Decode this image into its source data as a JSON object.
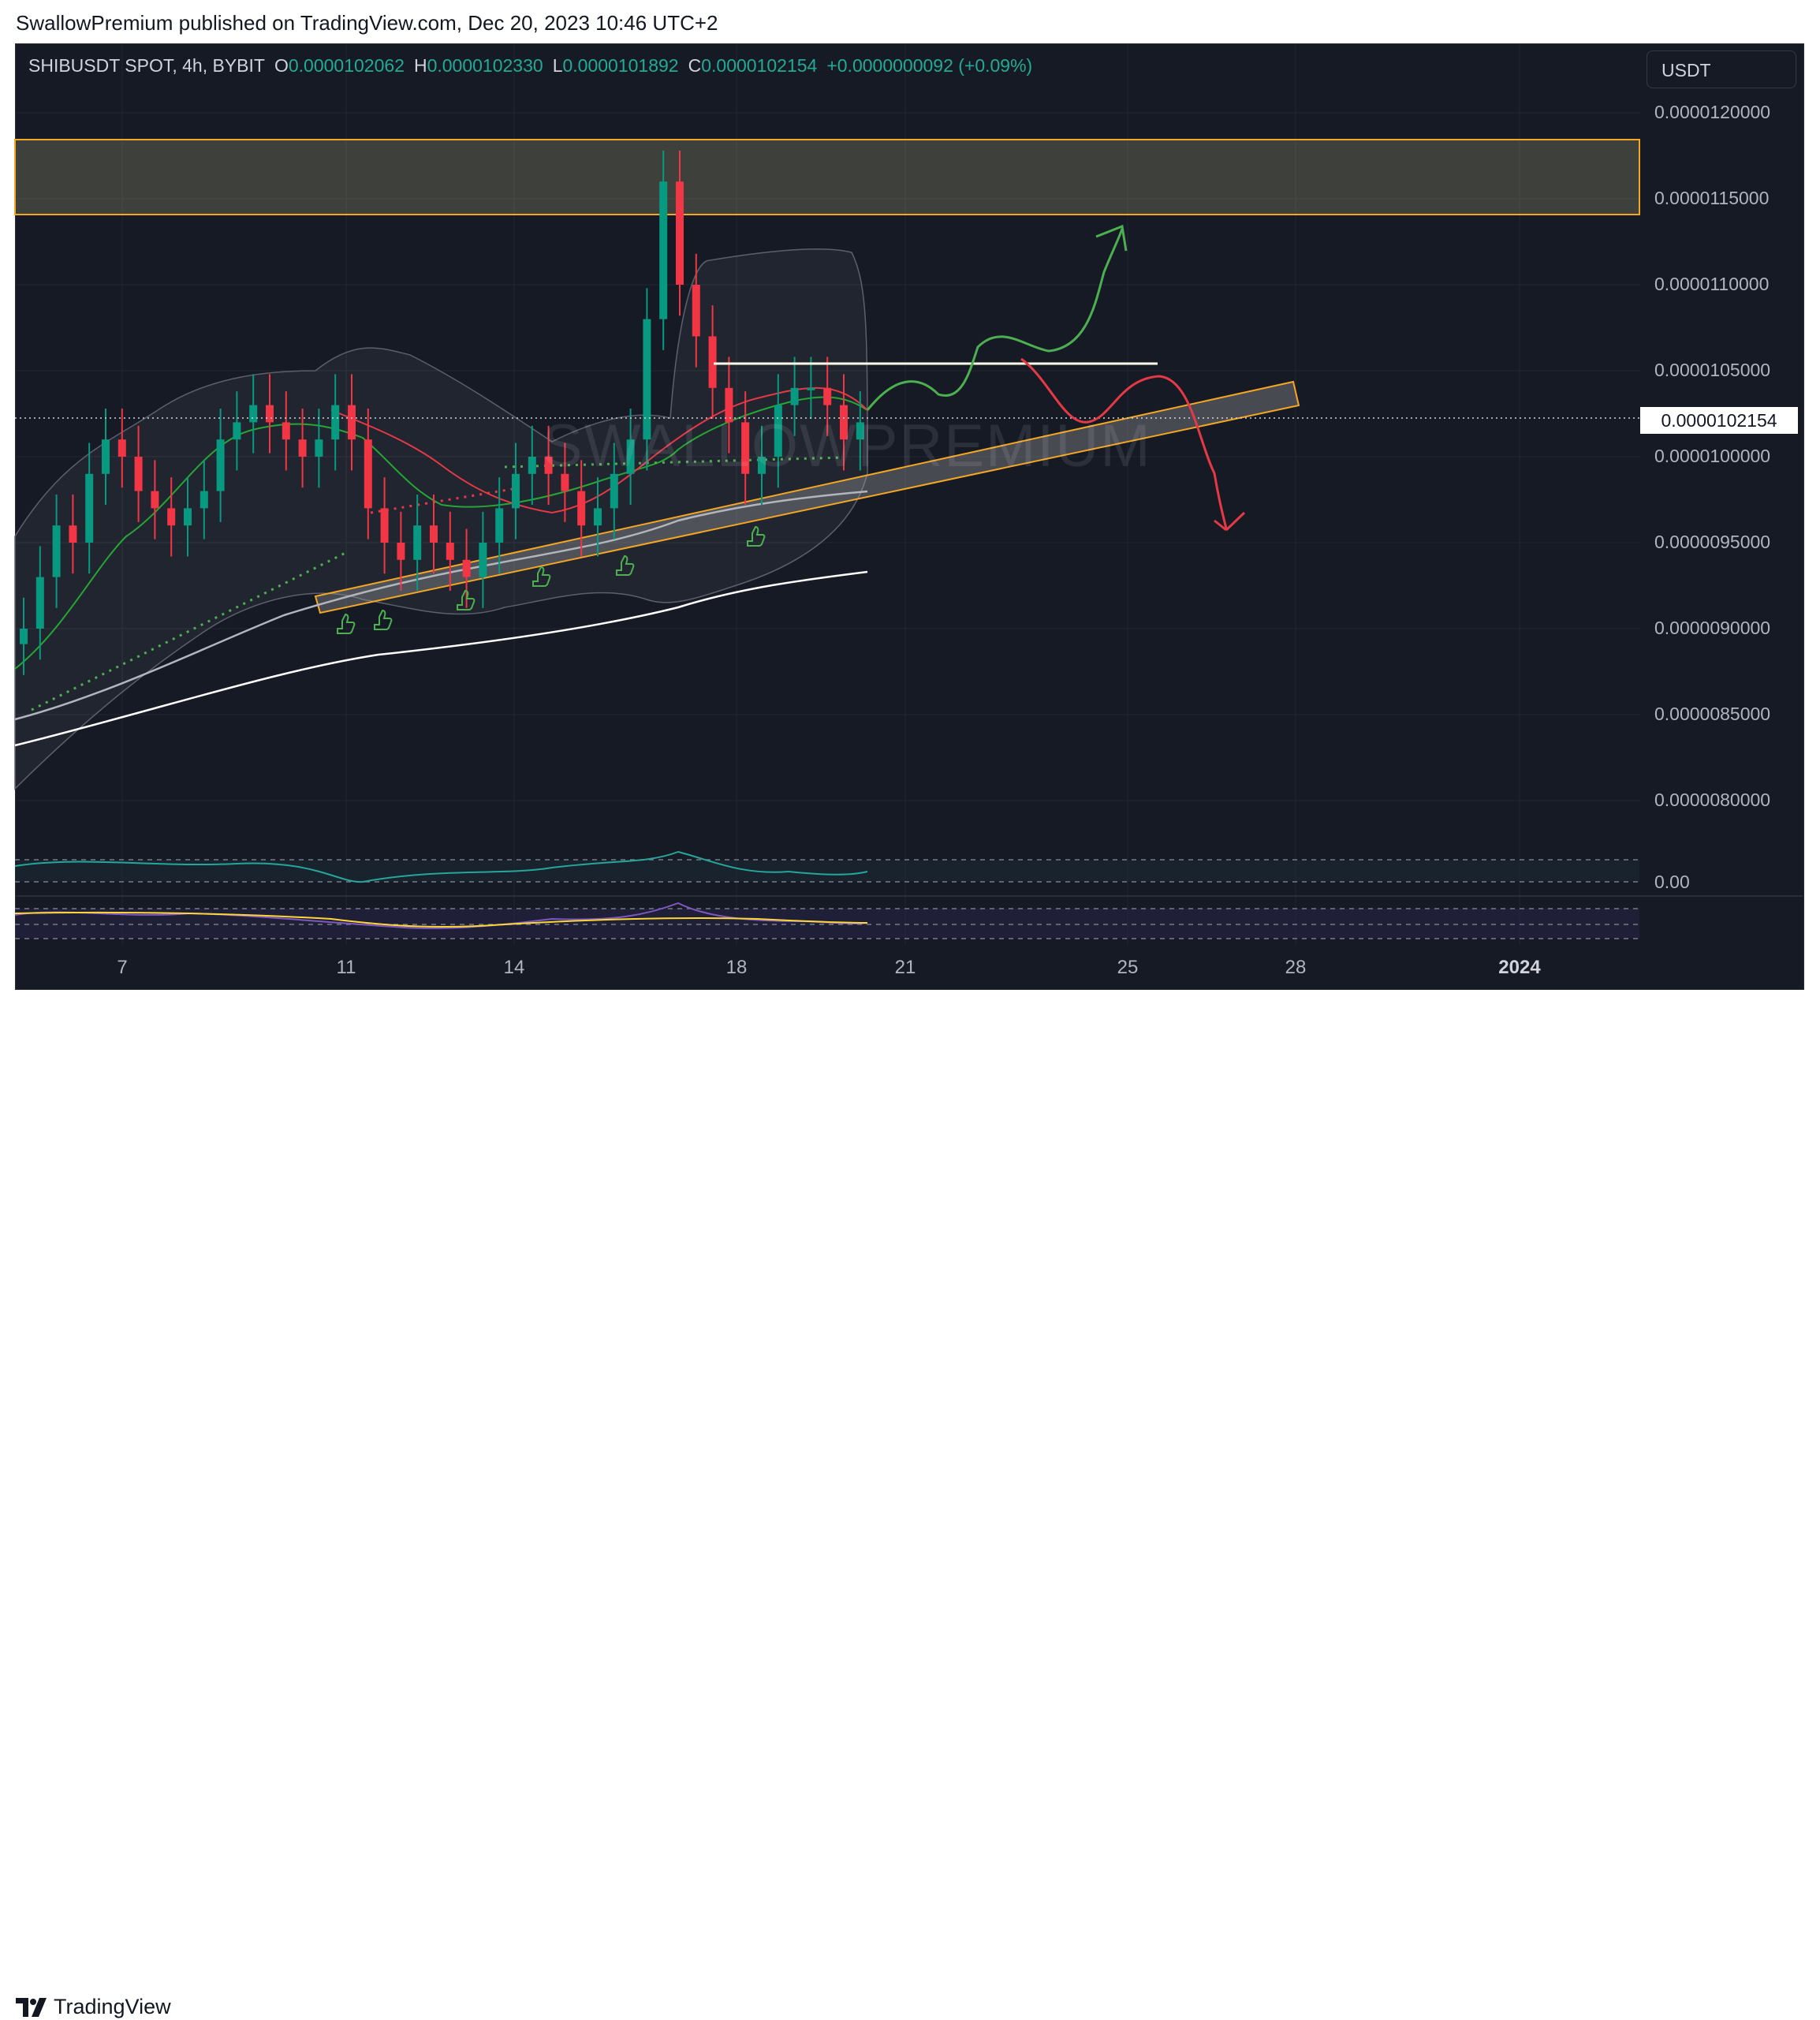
{
  "header": {
    "published": "SwallowPremium published on TradingView.com, Dec 20, 2023 10:46 UTC+2"
  },
  "legend": {
    "symbol": "SHIBUSDT SPOT, 4h, BYBIT",
    "open_key": "O",
    "open": "0.0000102062",
    "high_key": "H",
    "high": "0.0000102330",
    "low_key": "L",
    "low": "0.0000101892",
    "close_key": "C",
    "close": "0.0000102154",
    "change": "+0.0000000092 (+0.09%)"
  },
  "currency_button": "USDT",
  "watermark": "SWALLOWPREMIUM",
  "last_price": "0.0000102154",
  "oscillator_label": "0.00",
  "footer": {
    "brand": "TradingView"
  },
  "colors": {
    "background": "#161a25",
    "up": "#089981",
    "down": "#f23645",
    "zone": "#f5a623",
    "resistance_line": "#fffde7",
    "projection_up": "#4caf50",
    "projection_down": "#e53946"
  },
  "chart_data": {
    "type": "candlestick",
    "title": "SHIBUSDT SPOT, 4h, BYBIT",
    "y_ticks": [
      "0.0000120000",
      "0.0000115000",
      "0.0000110000",
      "0.0000105000",
      "0.0000100000",
      "0.0000095000",
      "0.0000090000",
      "0.0000085000",
      "0.0000080000"
    ],
    "x_ticks": [
      "7",
      "11",
      "14",
      "18",
      "21",
      "25",
      "28",
      "2024"
    ],
    "ylim": [
      7.6e-06,
      1.22e-05
    ],
    "grid": true,
    "candles_note_removed": true,
    "closes": [
      9e-06,
      9.3e-06,
      9.6e-06,
      9.5e-06,
      9.9e-06,
      1.01e-05,
      1e-05,
      9.8e-06,
      9.7e-06,
      9.6e-06,
      9.7e-06,
      9.8e-06,
      1.01e-05,
      1.02e-05,
      1.03e-05,
      1.02e-05,
      1.01e-05,
      1e-05,
      1.01e-05,
      1.03e-05,
      1.01e-05,
      9.7e-06,
      9.5e-06,
      9.4e-06,
      9.6e-06,
      9.5e-06,
      9.4e-06,
      9.3e-06,
      9.5e-06,
      9.7e-06,
      9.9e-06,
      1e-05,
      9.9e-06,
      9.8e-06,
      9.6e-06,
      9.7e-06,
      9.9e-06,
      1.01e-05,
      1.08e-05,
      1.16e-05,
      1.1e-05,
      1.07e-05,
      1.04e-05,
      1.02e-05,
      9.9e-06,
      1e-05,
      1.03e-05,
      1.04e-05,
      1.04e-05,
      1.03e-05,
      1.01e-05,
      1.02e-05
    ],
    "resistance_zone": [
      1.14e-05,
      1.18e-05
    ],
    "horizontal_level": 1.054e-05,
    "last_close": 1.02154e-05,
    "projection_up_target": 1.13e-05,
    "projection_down_target": 9.6e-06
  }
}
